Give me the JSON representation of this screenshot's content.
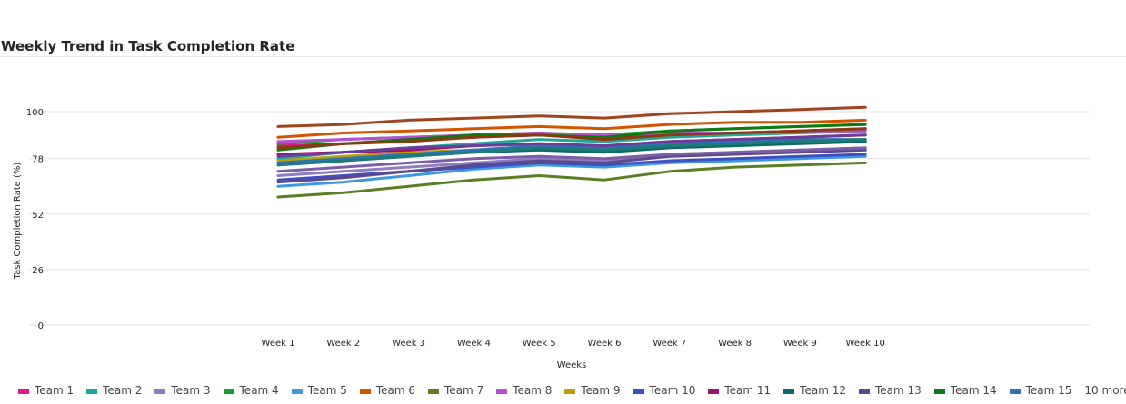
{
  "chart_data": {
    "type": "line",
    "title": "Weekly Trend in Task Completion Rate",
    "xlabel": "Weeks",
    "ylabel": "Task Completion Rate (%)",
    "ylim": [
      0,
      104
    ],
    "yticks": [
      0,
      26,
      52,
      78,
      100
    ],
    "grid": true,
    "legend_position": "bottom",
    "legend_more": "10 more",
    "categories": [
      "Week 1",
      "Week 2",
      "Week 3",
      "Week 4",
      "Week 5",
      "Week 6",
      "Week 7",
      "Week 8",
      "Week 9",
      "Week 10"
    ],
    "series": [
      {
        "name": "Team 1",
        "color": "#E0168A",
        "values": [
          84,
          85,
          87,
          88,
          89,
          88,
          90,
          90,
          91,
          92
        ]
      },
      {
        "name": "Team 2",
        "color": "#26A69A",
        "values": [
          78,
          81,
          83,
          85,
          87,
          86,
          88,
          89,
          90,
          91
        ]
      },
      {
        "name": "Team 3",
        "color": "#8E7CC3",
        "values": [
          70,
          72,
          74,
          76,
          78,
          77,
          80,
          81,
          82,
          83
        ]
      },
      {
        "name": "Team 4",
        "color": "#17A02F",
        "values": [
          85,
          87,
          88,
          89,
          90,
          89,
          91,
          92,
          93,
          94
        ]
      },
      {
        "name": "Team 5",
        "color": "#3C9BE0",
        "values": [
          65,
          67,
          70,
          73,
          75,
          74,
          76,
          77,
          78,
          79
        ]
      },
      {
        "name": "Team 6",
        "color": "#D35400",
        "values": [
          88,
          90,
          91,
          92,
          93,
          92,
          94,
          95,
          95,
          96
        ]
      },
      {
        "name": "Team 7",
        "color": "#5A7F23",
        "values": [
          60,
          62,
          65,
          68,
          70,
          68,
          72,
          74,
          75,
          76
        ]
      },
      {
        "name": "Team 8",
        "color": "#BB4FD1",
        "values": [
          86,
          87,
          88,
          89,
          90,
          89,
          90,
          90,
          91,
          91
        ]
      },
      {
        "name": "Team 9",
        "color": "#B8A100",
        "values": [
          77,
          79,
          81,
          82,
          83,
          82,
          84,
          85,
          85,
          86
        ]
      },
      {
        "name": "Team 10",
        "color": "#3F4FC0",
        "values": [
          68,
          70,
          72,
          74,
          76,
          75,
          77,
          78,
          79,
          80
        ]
      },
      {
        "name": "Team 11",
        "color": "#A0106A",
        "values": [
          80,
          81,
          82,
          84,
          85,
          84,
          86,
          87,
          88,
          89
        ]
      },
      {
        "name": "Team 12",
        "color": "#0E6B63",
        "values": [
          75,
          77,
          79,
          81,
          82,
          81,
          83,
          84,
          85,
          86
        ]
      },
      {
        "name": "Team 13",
        "color": "#5C4A8A",
        "values": [
          67,
          69,
          72,
          75,
          77,
          76,
          79,
          80,
          81,
          82
        ]
      },
      {
        "name": "Team 14",
        "color": "#0F7A14",
        "values": [
          82,
          85,
          87,
          89,
          89,
          88,
          91,
          92,
          93,
          94
        ]
      },
      {
        "name": "Team 15",
        "color": "#2E74B5",
        "values": [
          76,
          78,
          80,
          82,
          84,
          83,
          85,
          86,
          87,
          87
        ]
      },
      {
        "color": "#1F7A7A",
        "values": [
          75,
          77,
          79,
          81,
          83,
          82,
          84,
          85,
          86,
          87
        ]
      },
      {
        "color": "#6A3D9A",
        "values": [
          79,
          81,
          83,
          84,
          85,
          84,
          86,
          87,
          88,
          89
        ]
      },
      {
        "color": "#8B3A0F",
        "values": [
          83,
          85,
          86,
          88,
          89,
          87,
          89,
          90,
          91,
          92
        ]
      },
      {
        "color": "#7B5EA7",
        "values": [
          72,
          74,
          76,
          78,
          79,
          78,
          80,
          81,
          82,
          83
        ]
      },
      {
        "color": "#A0441B",
        "values": [
          93,
          94,
          96,
          97,
          98,
          97,
          99,
          100,
          101,
          102
        ]
      }
    ]
  }
}
